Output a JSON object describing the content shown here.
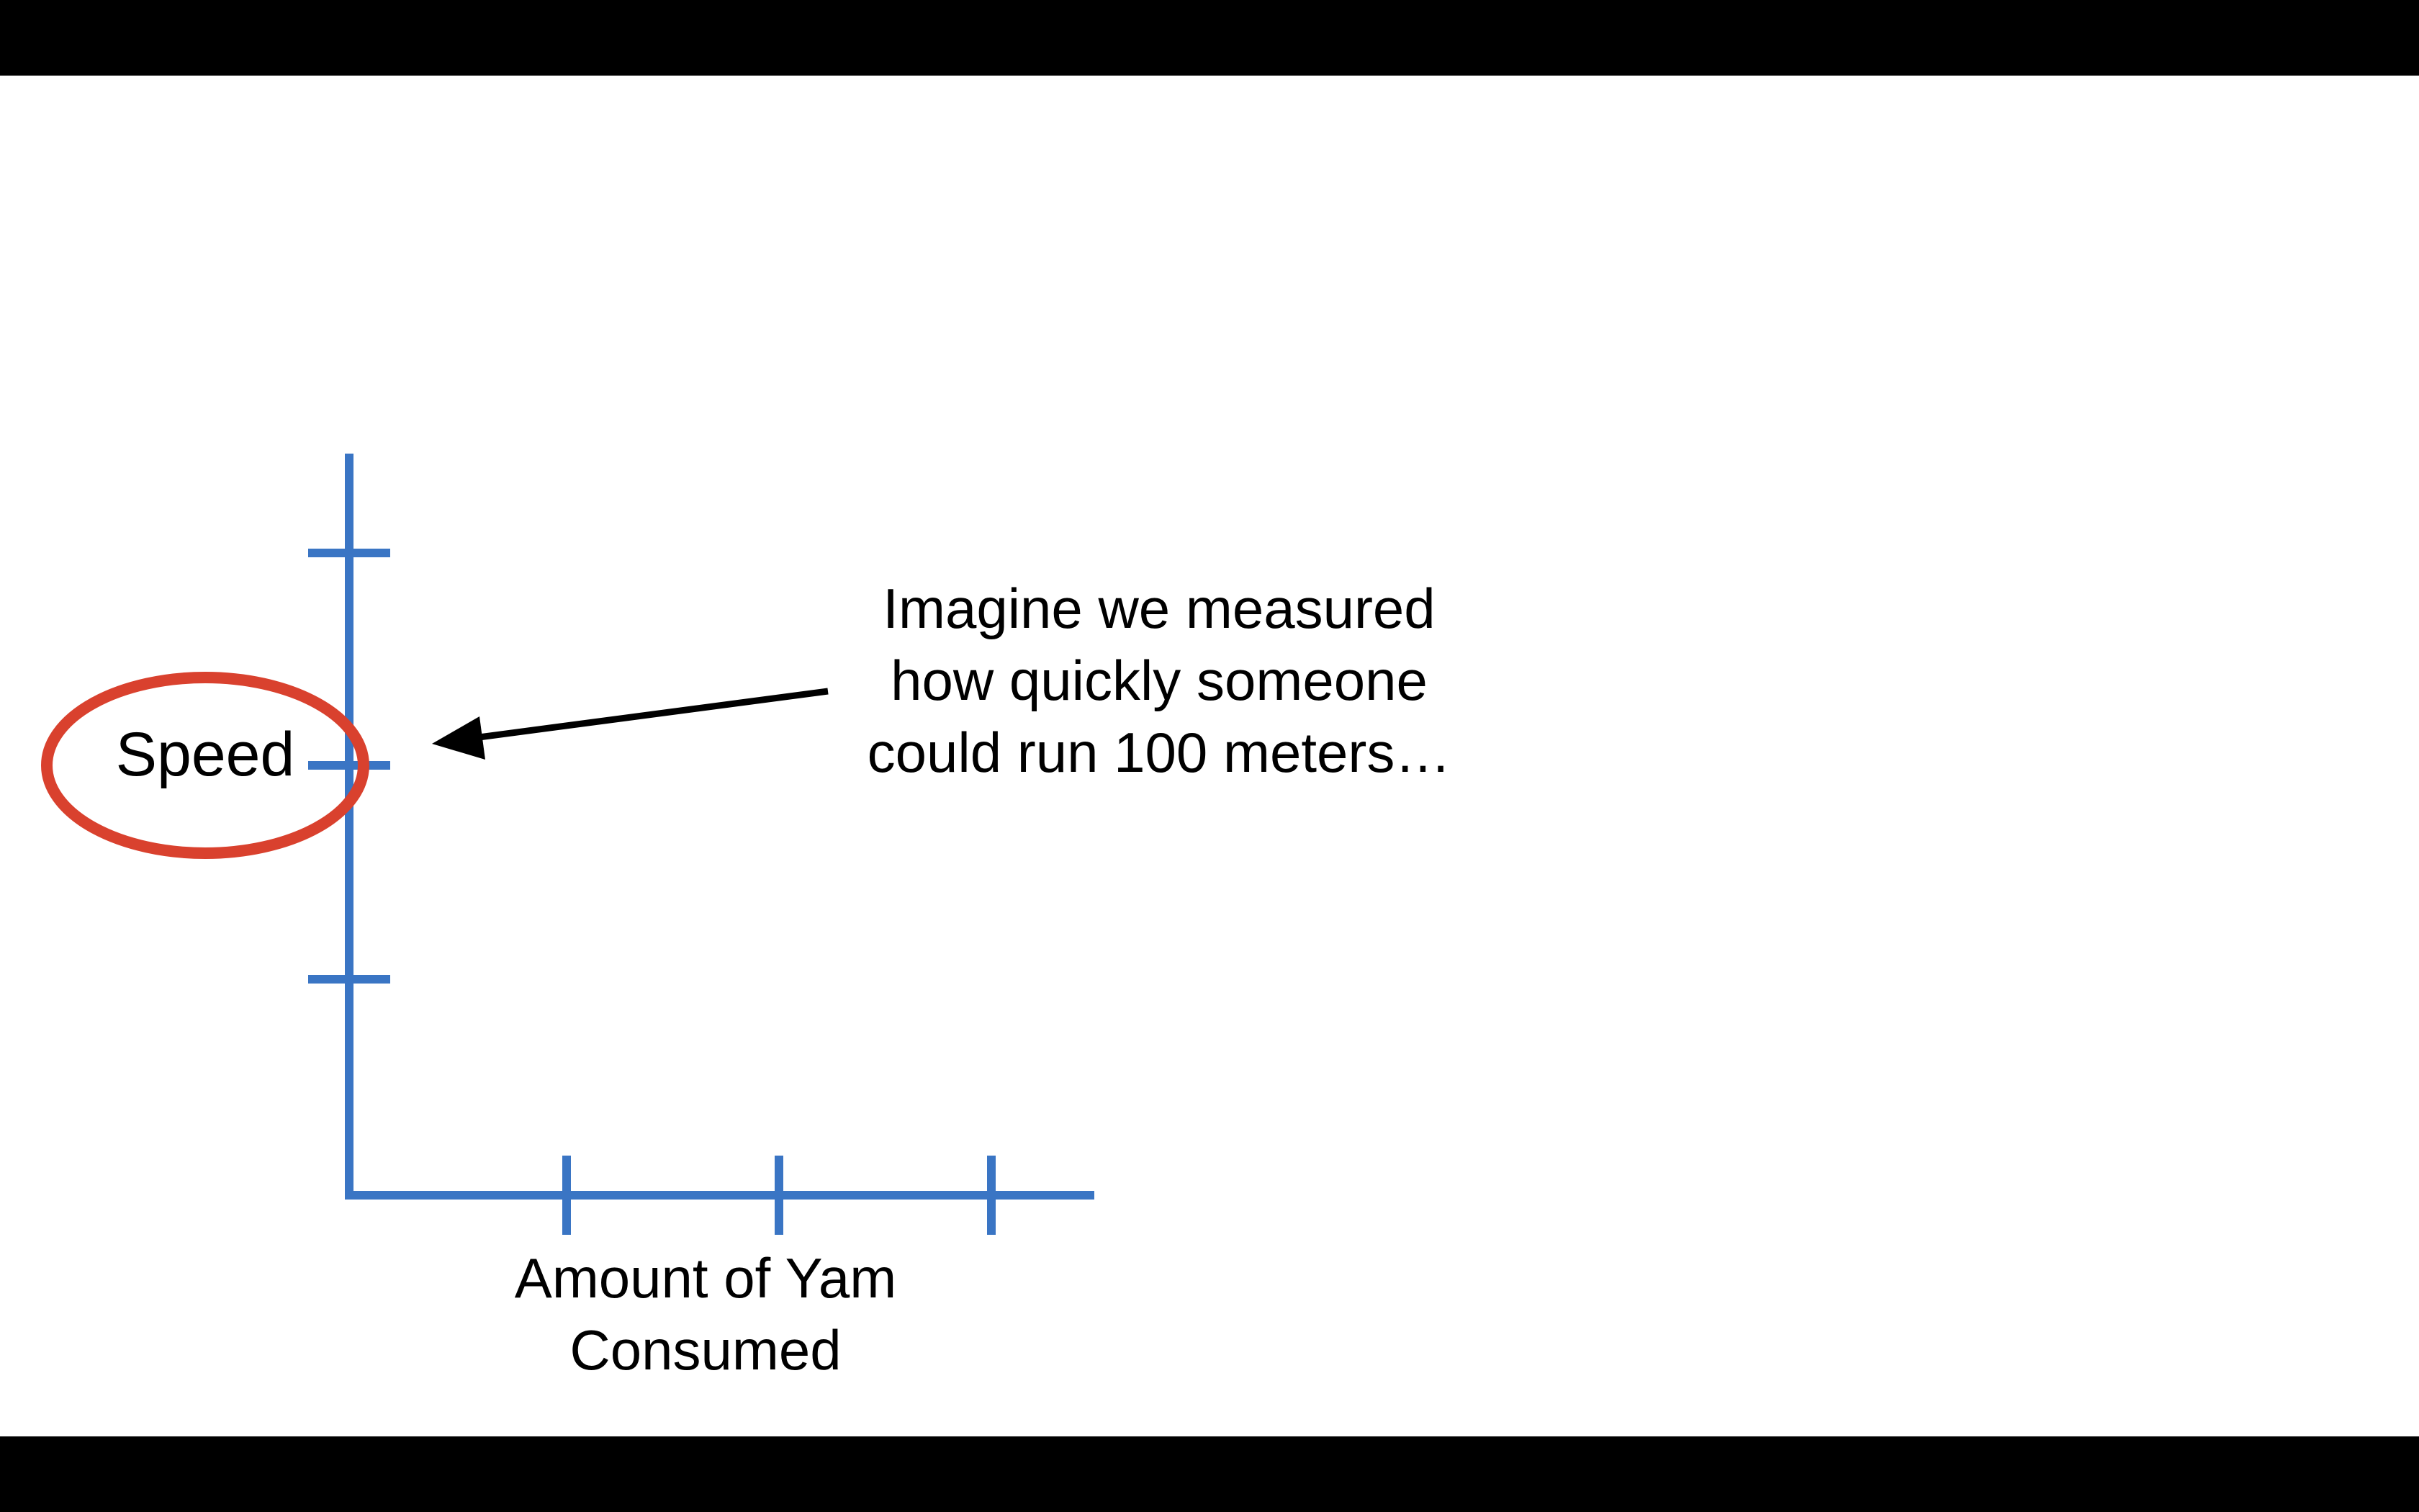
{
  "diagram": {
    "y_axis_label": "Speed",
    "x_axis_label_lines": [
      "Amount of Yam",
      "Consumed"
    ],
    "annotation_lines": [
      "Imagine we measured",
      "how quickly someone",
      "could run 100 meters…"
    ],
    "colors": {
      "axis": "#3a75c4",
      "highlight_circle": "#d9412e",
      "arrow": "#000000",
      "background": "#ffffff",
      "letterbox": "#000000"
    }
  }
}
